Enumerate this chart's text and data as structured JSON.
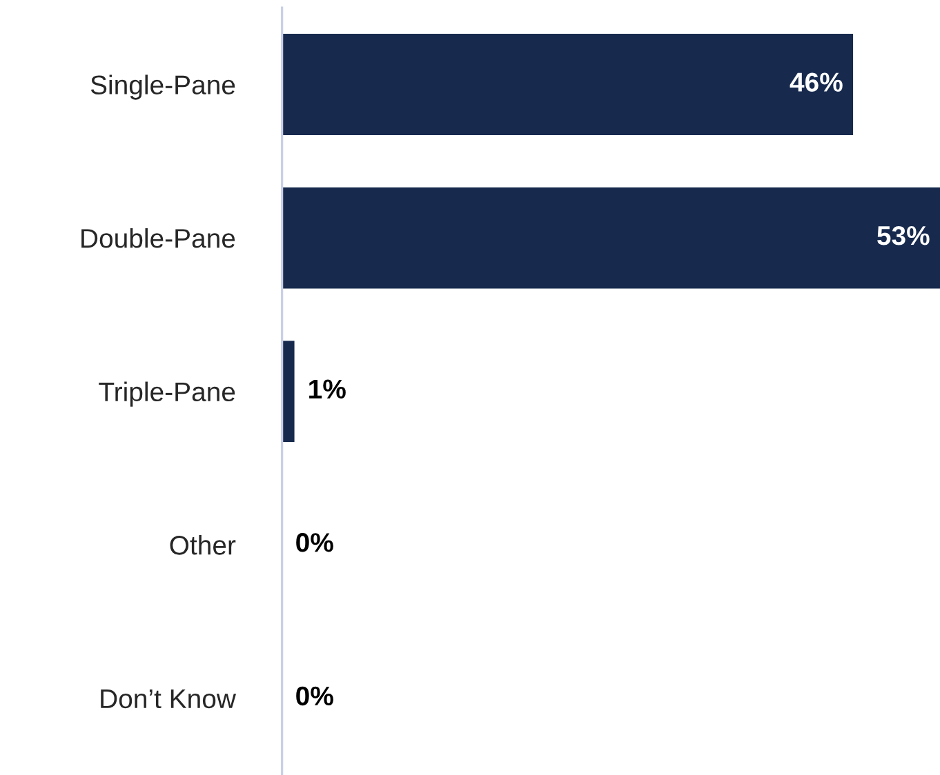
{
  "chart_data": {
    "type": "bar",
    "orientation": "horizontal",
    "categories": [
      "Single-Pane",
      "Double-Pane",
      "Triple-Pane",
      "Other",
      "Don’t Know"
    ],
    "values": [
      46,
      53,
      1,
      0,
      0
    ],
    "value_labels": [
      "46%",
      "53%",
      "1%",
      "0%",
      "0%"
    ],
    "color": "#172a4e",
    "grid": false,
    "legend": false
  }
}
